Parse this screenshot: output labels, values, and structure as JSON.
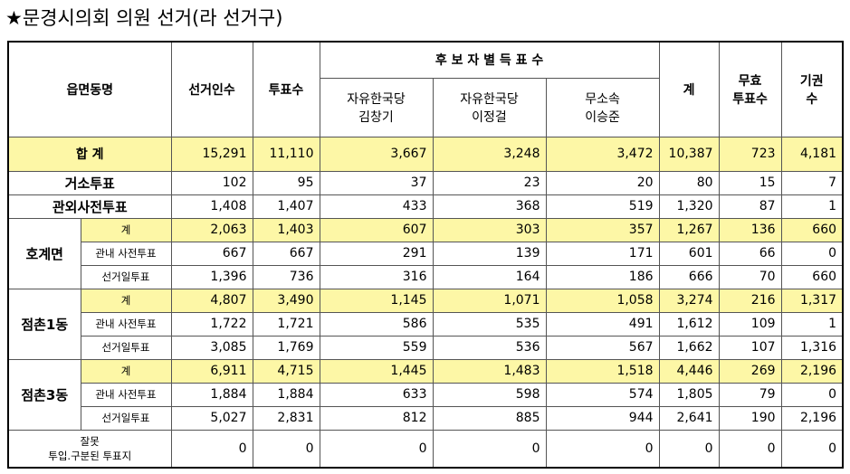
{
  "title": "★문경시의회 의원 선거(라 선거구)",
  "table": {
    "header": {
      "region": "읍면동명",
      "electors": "선거인수",
      "voters": "투표수",
      "candidates_group": "후 보 자 별 득 표 수",
      "candidates": [
        [
          "자유한국당",
          "김창기"
        ],
        [
          "자유한국당",
          "이정걸"
        ],
        [
          "무소속",
          "이승준"
        ]
      ],
      "total": "계",
      "invalid": [
        "무효",
        "투표수"
      ],
      "abstain": [
        "기권",
        "수"
      ]
    },
    "summary": {
      "label": "합 계",
      "cells": [
        "15,291",
        "11,110",
        "3,667",
        "3,248",
        "3,472",
        "10,387",
        "723",
        "4,181"
      ]
    },
    "rows": [
      {
        "label": "거소투표",
        "cells": [
          "102",
          "95",
          "37",
          "23",
          "20",
          "80",
          "15",
          "7"
        ]
      },
      {
        "label": "관외사전투표",
        "cells": [
          "1,408",
          "1,407",
          "433",
          "368",
          "519",
          "1,320",
          "87",
          "1"
        ]
      }
    ],
    "groups": [
      {
        "name": "호계면",
        "rows": [
          {
            "label": "계",
            "cells": [
              "2,063",
              "1,403",
              "607",
              "303",
              "357",
              "1,267",
              "136",
              "660"
            ]
          },
          {
            "label": "관내 사전투표",
            "cells": [
              "667",
              "667",
              "291",
              "139",
              "171",
              "601",
              "66",
              "0"
            ]
          },
          {
            "label": "선거일투표",
            "cells": [
              "1,396",
              "736",
              "316",
              "164",
              "186",
              "666",
              "70",
              "660"
            ]
          }
        ]
      },
      {
        "name": "점촌1동",
        "rows": [
          {
            "label": "계",
            "cells": [
              "4,807",
              "3,490",
              "1,145",
              "1,071",
              "1,058",
              "3,274",
              "216",
              "1,317"
            ]
          },
          {
            "label": "관내 사전투표",
            "cells": [
              "1,722",
              "1,721",
              "586",
              "535",
              "491",
              "1,612",
              "109",
              "1"
            ]
          },
          {
            "label": "선거일투표",
            "cells": [
              "3,085",
              "1,769",
              "559",
              "536",
              "567",
              "1,662",
              "107",
              "1,316"
            ]
          }
        ]
      },
      {
        "name": "점촌3동",
        "rows": [
          {
            "label": "계",
            "cells": [
              "6,911",
              "4,715",
              "1,445",
              "1,483",
              "1,518",
              "4,446",
              "269",
              "2,196"
            ]
          },
          {
            "label": "관내 사전투표",
            "cells": [
              "1,884",
              "1,884",
              "633",
              "598",
              "574",
              "1,805",
              "79",
              "0"
            ]
          },
          {
            "label": "선거일투표",
            "cells": [
              "5,027",
              "2,831",
              "812",
              "885",
              "944",
              "2,641",
              "190",
              "2,196"
            ]
          }
        ]
      }
    ],
    "error_row": {
      "label": [
        "잘못",
        "투입.구분된 투표지"
      ],
      "cells": [
        "0",
        "0",
        "0",
        "0",
        "0",
        "0",
        "0",
        "0"
      ]
    }
  }
}
